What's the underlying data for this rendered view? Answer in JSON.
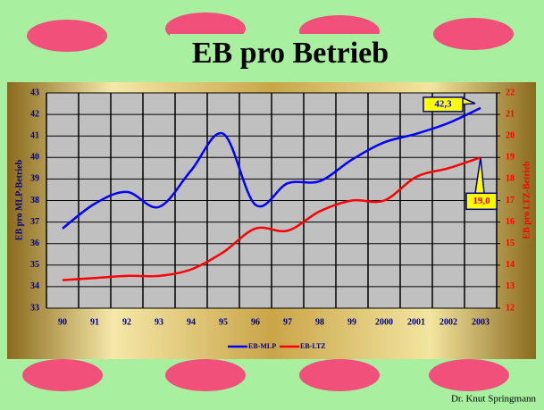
{
  "chart_data": {
    "type": "line",
    "title": "EB pro Betrieb",
    "categories": [
      "90",
      "91",
      "92",
      "93",
      "94",
      "95",
      "96",
      "97",
      "98",
      "99",
      "2000",
      "2001",
      "2002",
      "2003"
    ],
    "series": [
      {
        "name": "EB-MLP",
        "color": "#0000ff",
        "values": [
          36.7,
          37.85,
          38.4,
          37.7,
          39.4,
          41.1,
          37.8,
          38.8,
          38.9,
          39.9,
          40.7,
          41.1,
          41.6,
          42.3
        ]
      },
      {
        "name": "EB-LTZ",
        "color": "#ff0000",
        "axis": "y2",
        "values": [
          13.3,
          13.4,
          13.5,
          13.5,
          13.8,
          14.6,
          15.7,
          15.6,
          16.5,
          17.0,
          17.0,
          18.1,
          18.5,
          19.0
        ]
      }
    ],
    "ylabel": "EB pro MLP-Betrieb",
    "y2label": "EB pro LTZ-Betrieb",
    "ylim": [
      33,
      43
    ],
    "yticks": [
      33,
      34,
      35,
      36,
      37,
      38,
      39,
      40,
      41,
      42,
      43
    ],
    "y2lim": [
      12,
      22
    ],
    "y2ticks": [
      12,
      13,
      14,
      15,
      16,
      17,
      18,
      19,
      20,
      21,
      22
    ],
    "grid": true,
    "legend": "bottom",
    "annotations": [
      {
        "text": "42,3"
      },
      {
        "text": "19,0"
      }
    ],
    "footer": "Dr. Knut Springmann"
  }
}
